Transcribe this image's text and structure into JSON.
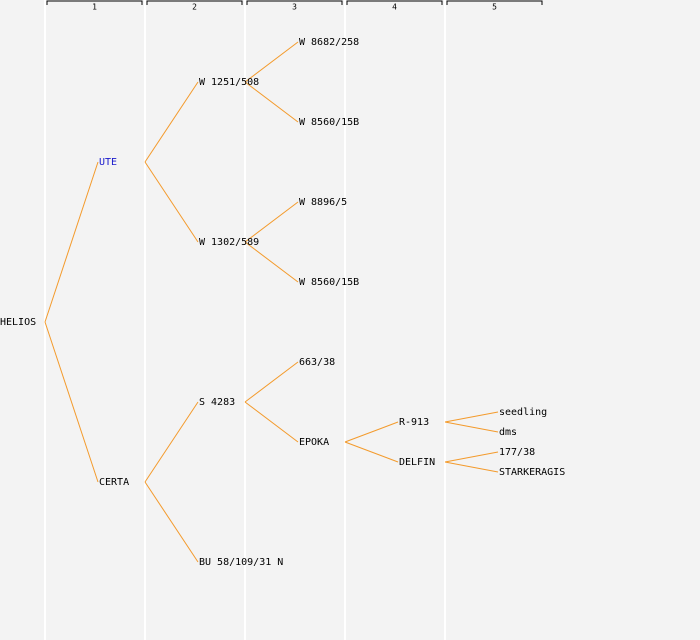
{
  "header": {
    "columns": [
      "1",
      "2",
      "3",
      "4",
      "5"
    ]
  },
  "tree": {
    "label": "HELIOS",
    "children": [
      {
        "label": "UTE",
        "children": [
          {
            "label": "W 1251/508",
            "children": [
              {
                "label": "W 8682/258"
              },
              {
                "label": "W 8560/15B"
              }
            ]
          },
          {
            "label": "W 1302/589",
            "children": [
              {
                "label": "W 8896/5"
              },
              {
                "label": "W 8560/15B"
              }
            ]
          }
        ]
      },
      {
        "label": "CERTA",
        "children": [
          {
            "label": "S 4283",
            "children": [
              {
                "label": "663/38"
              },
              {
                "label": "EPOKA",
                "children": [
                  {
                    "label": "R-913",
                    "children": [
                      {
                        "label": "seedling"
                      },
                      {
                        "label": "dms"
                      }
                    ]
                  },
                  {
                    "label": "DELFIN",
                    "children": [
                      {
                        "label": "177/38"
                      },
                      {
                        "label": "STARKERAGIS"
                      }
                    ]
                  }
                ]
              }
            ]
          },
          {
            "label": "BU 58/109/31 N"
          }
        ]
      }
    ]
  }
}
